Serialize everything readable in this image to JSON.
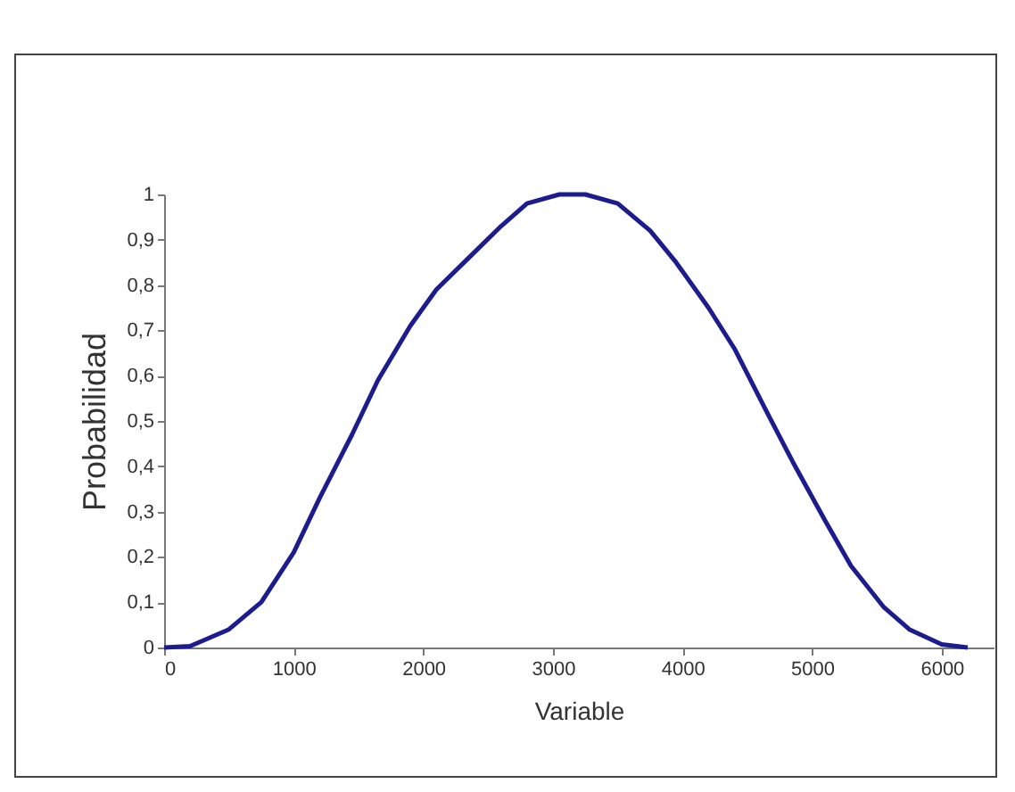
{
  "chart_data": {
    "type": "line",
    "xlabel": "Variable",
    "ylabel": "Probabilidad",
    "x": [
      0,
      200,
      500,
      750,
      1000,
      1200,
      1450,
      1650,
      1900,
      2100,
      2350,
      2600,
      2800,
      3050,
      3250,
      3500,
      3750,
      3950,
      4200,
      4400,
      4650,
      4850,
      5100,
      5300,
      5550,
      5750,
      6000,
      6200
    ],
    "series": [
      {
        "color": "#1c1c8e",
        "values": [
          0,
          0.003,
          0.04,
          0.1,
          0.21,
          0.33,
          0.47,
          0.59,
          0.71,
          0.79,
          0.86,
          0.93,
          0.98,
          1.0,
          1.0,
          0.98,
          0.92,
          0.85,
          0.75,
          0.66,
          0.52,
          0.41,
          0.28,
          0.18,
          0.09,
          0.04,
          0.007,
          0
        ]
      }
    ],
    "xlim": [
      0,
      6400
    ],
    "xticks": [
      0,
      1000,
      2000,
      3000,
      4000,
      5000,
      6000
    ],
    "ylim": [
      0,
      1
    ],
    "yticks": [
      0,
      {
        "value": 0.1,
        "label": "0,1"
      },
      {
        "value": 0.2,
        "label": "0,2"
      },
      {
        "value": 0.3,
        "label": "0,3"
      },
      {
        "value": 0.4,
        "label": "0,4"
      },
      {
        "value": 0.5,
        "label": "0,5"
      },
      {
        "value": 0.6,
        "label": "0,6"
      },
      {
        "value": 0.7,
        "label": "0,7"
      },
      {
        "value": 0.8,
        "label": "0,8"
      },
      {
        "value": 0.9,
        "label": "0,9"
      },
      1
    ],
    "grid": false,
    "legend": false,
    "marker": "none",
    "line_style": "solid"
  }
}
